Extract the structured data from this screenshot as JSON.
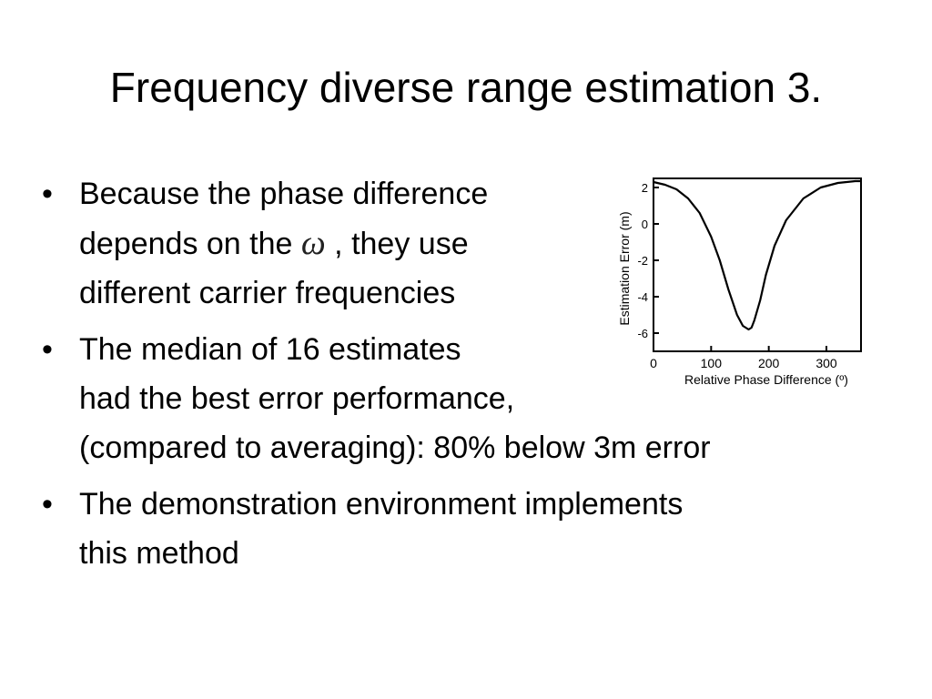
{
  "slide": {
    "title": "Frequency diverse range estimation 3.",
    "bullets": [
      {
        "lines": [
          "Because the phase difference",
          {
            "before": "depends on the ",
            "symbol": "ω",
            "after": " , they use"
          },
          "different carrier frequencies"
        ]
      },
      {
        "lines": [
          "The median of 16 estimates",
          "had the best error performance,",
          "(compared to averaging): 80% below 3m error"
        ]
      },
      {
        "lines": [
          "The demonstration environment implements",
          "this method"
        ]
      }
    ]
  },
  "chart_data": {
    "type": "line",
    "xlabel": "Relative Phase Difference (º)",
    "ylabel": "Estimation Error (m)",
    "xlim": [
      0,
      360
    ],
    "ylim": [
      -7,
      2.5
    ],
    "xticks": [
      0,
      100,
      200,
      300
    ],
    "yticks": [
      2,
      0,
      -2,
      -4,
      -6
    ],
    "grid": false,
    "series": [
      {
        "x": [
          0,
          20,
          40,
          60,
          80,
          100,
          115,
          130,
          145,
          155,
          165,
          170,
          175,
          185,
          195,
          210,
          230,
          260,
          290,
          320,
          350,
          360
        ],
        "values": [
          2.3,
          2.15,
          1.9,
          1.4,
          0.6,
          -0.7,
          -2.0,
          -3.6,
          -5.0,
          -5.6,
          -5.8,
          -5.7,
          -5.3,
          -4.2,
          -2.8,
          -1.2,
          0.2,
          1.4,
          2.0,
          2.25,
          2.35,
          2.35
        ]
      }
    ]
  }
}
